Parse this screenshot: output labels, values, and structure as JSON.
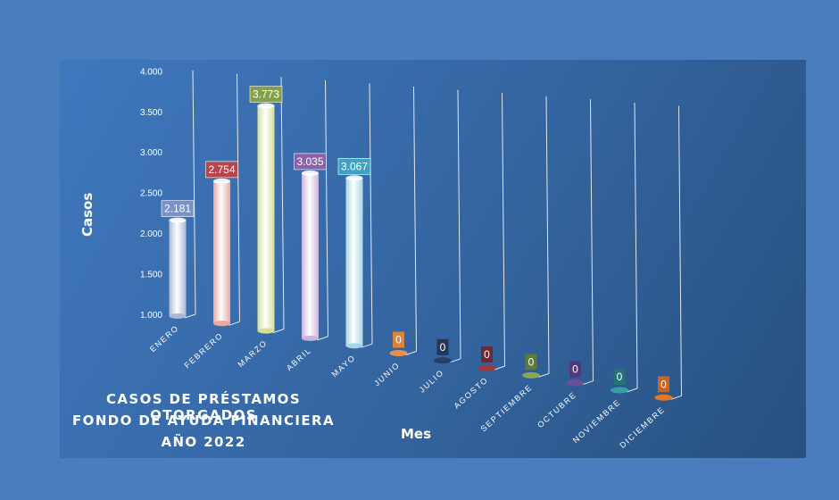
{
  "chart_data": {
    "type": "bar",
    "title_lines": [
      "CASOS DE PRÉSTAMOS OTORGADOS",
      "FONDO DE AYUDA FINANCIERA",
      "AÑO 2022"
    ],
    "xlabel": "Mes",
    "ylabel": "Casos",
    "ylim": [
      1000,
      4000
    ],
    "y_ticks": [
      "1.000",
      "1.500",
      "2.000",
      "2.500",
      "3.000",
      "3.500",
      "4.000"
    ],
    "categories": [
      "ENERO",
      "FEBRERO",
      "MARZO",
      "ABRIL",
      "MAYO",
      "JUNIO",
      "JULIO",
      "AGOSTO",
      "SEPTIEMBRE",
      "OCTUBRE",
      "NOVIEMBRE",
      "DICIEMBRE"
    ],
    "values": [
      2181,
      2754,
      3773,
      3035,
      3067,
      0,
      0,
      0,
      0,
      0,
      0,
      0
    ],
    "data_labels": [
      "2.181",
      "2.754",
      "3.773",
      "3.035",
      "3.067",
      "0",
      "0",
      "0",
      "0",
      "0",
      "0",
      "0"
    ],
    "bar_colors": [
      "#aab8d6",
      "#e9a9a2",
      "#d6de9a",
      "#c8b6dc",
      "#a9d6e4",
      "#e8914a",
      "#2a3d66",
      "#9a3a3a",
      "#8ba55a",
      "#6a4e99",
      "#33a0a8",
      "#e07a2a"
    ],
    "label_colors": [
      "#7a92c7",
      "#b8454a",
      "#86a04a",
      "#8a62a8",
      "#3fa3c0",
      "#d9873c",
      "#233656",
      "#6e2930",
      "#5d7a36",
      "#4e3a80",
      "#26707a",
      "#c2662a"
    ],
    "grid": true
  }
}
